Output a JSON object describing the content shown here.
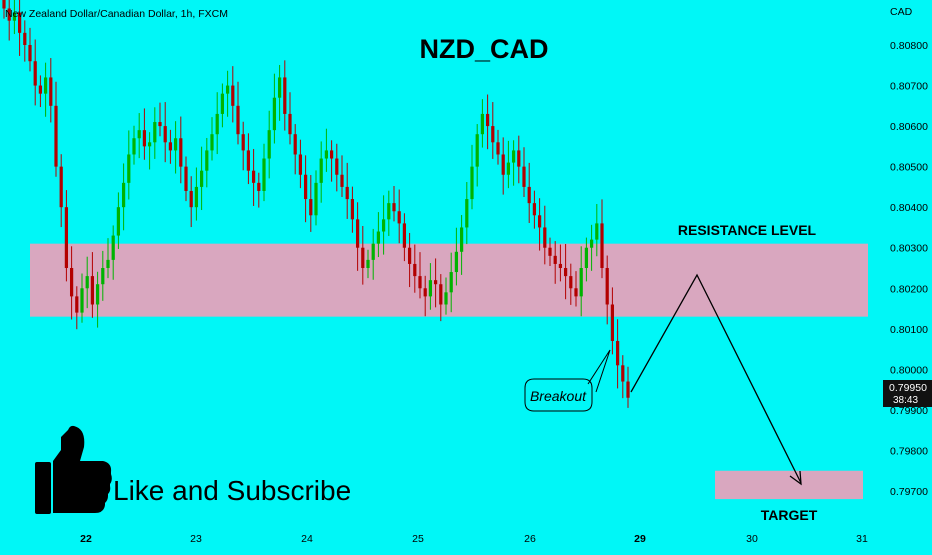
{
  "header": {
    "symbol_line": "New Zealand Dollar/Canadian Dollar, 1h, FXCM",
    "title": "NZD_CAD"
  },
  "price_axis": {
    "currency": "CAD",
    "ticks": [
      "0.80800",
      "0.80700",
      "0.80600",
      "0.80500",
      "0.80400",
      "0.80300",
      "0.80200",
      "0.80100",
      "0.80000",
      "0.79900",
      "0.79800",
      "0.79700"
    ],
    "current_price": "0.79950",
    "countdown": "38:43"
  },
  "time_axis": {
    "ticks": [
      "22",
      "23",
      "24",
      "25",
      "26",
      "29",
      "30",
      "31"
    ]
  },
  "annotations": {
    "resistance_label": "RESISTANCE LEVEL",
    "breakout_label": "Breakout",
    "target_label": "TARGET",
    "subscribe_text": "Like and Subscribe"
  },
  "icons": {
    "thumbs_up": "thumbs-up-icon"
  },
  "colors": {
    "background": "#00f7f7",
    "bullish": "#00b300",
    "bearish": "#b30000",
    "zone": "#d9a7bf",
    "price_tag": "#111111"
  },
  "chart_data": {
    "type": "candlestick",
    "title": "NZD_CAD",
    "symbol": "New Zealand Dollar/Canadian Dollar",
    "timeframe": "1h",
    "source": "FXCM",
    "ylim": [
      0.7966,
      0.8093
    ],
    "resistance_zone": [
      0.8013,
      0.8031
    ],
    "target_zone": [
      0.7968,
      0.7975
    ],
    "current_price": 0.7995,
    "close_series_approx": [
      0.8089,
      0.8086,
      0.8088,
      0.8083,
      0.808,
      0.8076,
      0.807,
      0.8068,
      0.8072,
      0.8065,
      0.805,
      0.804,
      0.8025,
      0.8018,
      0.8014,
      0.802,
      0.8023,
      0.8016,
      0.8021,
      0.8025,
      0.8027,
      0.8033,
      0.804,
      0.8046,
      0.8053,
      0.8057,
      0.8059,
      0.8055,
      0.8056,
      0.8061,
      0.806,
      0.8056,
      0.8054,
      0.8057,
      0.805,
      0.8044,
      0.804,
      0.8045,
      0.8049,
      0.8054,
      0.8058,
      0.8063,
      0.8068,
      0.807,
      0.8065,
      0.8058,
      0.8054,
      0.8049,
      0.8046,
      0.8044,
      0.8052,
      0.8059,
      0.8067,
      0.8072,
      0.8063,
      0.8058,
      0.8053,
      0.8048,
      0.8042,
      0.8038,
      0.8046,
      0.8052,
      0.8054,
      0.8052,
      0.8048,
      0.8045,
      0.8042,
      0.8037,
      0.803,
      0.8025,
      0.8027,
      0.8031,
      0.8034,
      0.8037,
      0.8041,
      0.8039,
      0.8036,
      0.803,
      0.8026,
      0.8023,
      0.802,
      0.8018,
      0.8022,
      0.8021,
      0.8016,
      0.8019,
      0.8024,
      0.8029,
      0.8035,
      0.8042,
      0.805,
      0.8058,
      0.8063,
      0.806,
      0.8056,
      0.8053,
      0.8048,
      0.8051,
      0.8054,
      0.805,
      0.8045,
      0.8041,
      0.8038,
      0.8035,
      0.803,
      0.8028,
      0.8026,
      0.8025,
      0.8023,
      0.802,
      0.8018,
      0.8025,
      0.803,
      0.8032,
      0.8036,
      0.8025,
      0.8016,
      0.8007,
      0.8001,
      0.7997,
      0.7993
    ]
  }
}
